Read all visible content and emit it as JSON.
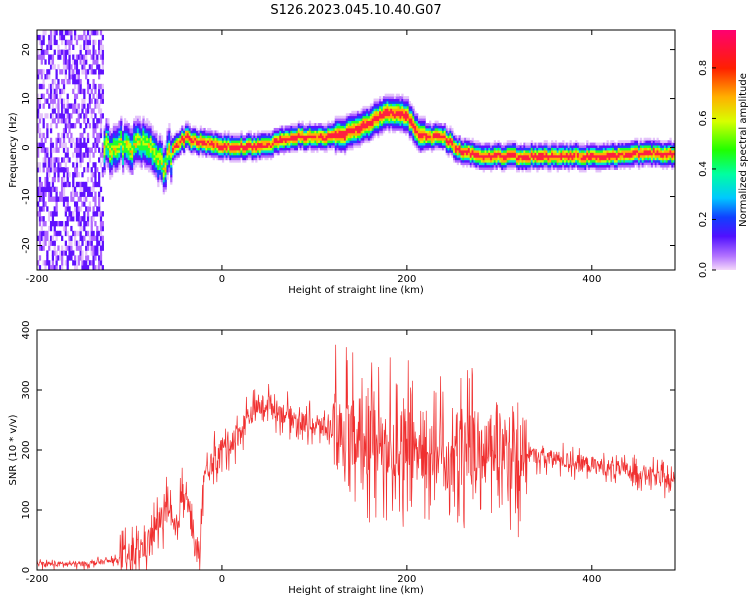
{
  "title": "S126.2023.045.10.40.G07",
  "chart_data": [
    {
      "type": "heatmap",
      "xlabel": "Height of straight line (km)",
      "ylabel": "Frequency (Hz)",
      "xlim": [
        -200,
        490
      ],
      "ylim": [
        -25,
        24
      ],
      "xticks": [
        -200,
        0,
        200,
        400
      ],
      "yticks": [
        -20,
        -10,
        0,
        10,
        20
      ],
      "colorbar": {
        "label": "Normalized spectral amplitude",
        "range": [
          0,
          0.95
        ],
        "ticks": [
          0.0,
          0.2,
          0.4,
          0.6,
          0.8
        ],
        "colors": [
          "#f0c8f8",
          "#a050ff",
          "#3020ff",
          "#00c8ff",
          "#00ff80",
          "#30ff00",
          "#d8ff00",
          "#ffb000",
          "#ff3000",
          "#ff0060"
        ]
      },
      "ridge": {
        "x": [
          -120,
          -100,
          -80,
          -70,
          -65,
          -60,
          -50,
          -40,
          -30,
          -20,
          0,
          20,
          40,
          60,
          80,
          100,
          120,
          140,
          150,
          160,
          170,
          180,
          190,
          200,
          210,
          220,
          240,
          250,
          260,
          280,
          300,
          320,
          340,
          360,
          380,
          400,
          420,
          440,
          460,
          490
        ],
        "y": [
          0,
          0,
          1,
          -3,
          -4,
          -2,
          0,
          2,
          1,
          1,
          0,
          0,
          0,
          1,
          2,
          2,
          2,
          3,
          4,
          5,
          6,
          7,
          7,
          6,
          3,
          2,
          2,
          0,
          -1,
          -2,
          -2,
          -2,
          -2,
          -2,
          -2,
          -2,
          -2,
          -1.5,
          -1.5,
          -1.5
        ]
      }
    },
    {
      "type": "line",
      "xlabel": "Height of straight line (km)",
      "ylabel": "SNR (10 * v/v)",
      "xlim": [
        -200,
        490
      ],
      "ylim": [
        0,
        400
      ],
      "xticks": [
        -200,
        0,
        200,
        400
      ],
      "yticks": [
        0,
        100,
        200,
        300,
        400
      ],
      "color": "#f03030",
      "series": [
        {
          "x": [
            -200,
            -150,
            -120,
            -100,
            -80,
            -70,
            -60,
            -50,
            -40,
            -30,
            -25,
            -20,
            -10,
            0,
            20,
            30,
            40,
            50,
            60,
            70,
            80,
            100,
            120,
            140,
            160,
            180,
            200,
            220,
            240,
            260,
            280,
            300,
            320,
            340,
            360,
            380,
            400,
            420,
            440,
            460,
            480,
            490
          ],
          "y": [
            10,
            10,
            15,
            20,
            45,
            75,
            100,
            60,
            150,
            50,
            5,
            150,
            180,
            200,
            230,
            260,
            270,
            280,
            265,
            260,
            250,
            240,
            235,
            225,
            220,
            215,
            210,
            205,
            200,
            200,
            200,
            200,
            195,
            190,
            185,
            180,
            175,
            170,
            165,
            160,
            150,
            145
          ]
        }
      ]
    }
  ]
}
